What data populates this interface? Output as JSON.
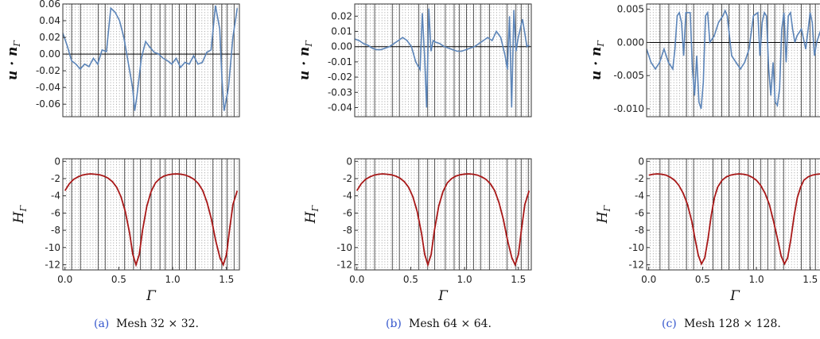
{
  "colors": {
    "velocity_series": "#5b84b8",
    "height_series": "#a81818",
    "caption_label": "#3355cc",
    "grid_solid": "#444444",
    "grid_dotted": "#9a9a9a"
  },
  "chart_data": [
    {
      "type": "line",
      "panel": "a-top",
      "ylabel": "u · n_Γ",
      "ylim": [
        -0.075,
        0.06
      ],
      "xlim": [
        0,
        1.62
      ],
      "yticks": [
        "0.06",
        "0.04",
        "0.02",
        "0.00",
        "-0.02",
        "-0.04",
        "-0.06"
      ],
      "ytick_values": [
        0.06,
        0.04,
        0.02,
        0.0,
        -0.02,
        -0.04,
        -0.06
      ],
      "series": [
        {
          "x": [
            0.0,
            0.04,
            0.08,
            0.12,
            0.16,
            0.2,
            0.24,
            0.28,
            0.32,
            0.36,
            0.4,
            0.44,
            0.48,
            0.52,
            0.56,
            0.6,
            0.64,
            0.66,
            0.68,
            0.72,
            0.76,
            0.8,
            0.84,
            0.88,
            0.92,
            0.96,
            1.0,
            1.04,
            1.08,
            1.12,
            1.16,
            1.2,
            1.24,
            1.28,
            1.32,
            1.36,
            1.4,
            1.44,
            1.46,
            1.48,
            1.52,
            1.56,
            1.6
          ],
          "y": [
            0.025,
            0.01,
            -0.008,
            -0.012,
            -0.018,
            -0.012,
            -0.015,
            -0.005,
            -0.012,
            0.005,
            0.003,
            0.055,
            0.05,
            0.04,
            0.02,
            -0.01,
            -0.04,
            -0.068,
            -0.05,
            -0.005,
            0.015,
            0.008,
            0.002,
            0.0,
            -0.005,
            -0.008,
            -0.012,
            -0.005,
            -0.016,
            -0.01,
            -0.012,
            -0.002,
            -0.012,
            -0.01,
            0.002,
            0.005,
            0.058,
            0.03,
            -0.03,
            -0.068,
            -0.04,
            0.02,
            0.055
          ]
        }
      ]
    },
    {
      "type": "line",
      "panel": "b-top",
      "ylabel": "u · n_Γ",
      "ylim": [
        -0.046,
        0.028
      ],
      "xlim": [
        0,
        1.62
      ],
      "yticks": [
        "0.02",
        "0.01",
        "0.00",
        "-0.01",
        "-0.02",
        "-0.03",
        "-0.04"
      ],
      "ytick_values": [
        0.02,
        0.01,
        0.0,
        -0.01,
        -0.02,
        -0.03,
        -0.04
      ],
      "series": [
        {
          "x": [
            0.0,
            0.04,
            0.08,
            0.12,
            0.16,
            0.2,
            0.24,
            0.28,
            0.32,
            0.36,
            0.4,
            0.44,
            0.48,
            0.52,
            0.56,
            0.6,
            0.62,
            0.64,
            0.66,
            0.68,
            0.7,
            0.72,
            0.74,
            0.78,
            0.82,
            0.86,
            0.9,
            0.94,
            0.98,
            1.02,
            1.06,
            1.1,
            1.14,
            1.18,
            1.22,
            1.26,
            1.3,
            1.34,
            1.38,
            1.4,
            1.42,
            1.44,
            1.46,
            1.48,
            1.5,
            1.54,
            1.58,
            1.6
          ],
          "y": [
            0.005,
            0.004,
            0.002,
            0.001,
            -0.001,
            -0.002,
            -0.002,
            -0.001,
            0.0,
            0.002,
            0.004,
            0.006,
            0.004,
            0.0,
            -0.01,
            -0.015,
            0.022,
            -0.005,
            -0.04,
            0.025,
            -0.003,
            0.004,
            0.003,
            0.002,
            0.0,
            -0.001,
            -0.002,
            -0.003,
            -0.003,
            -0.002,
            -0.001,
            0.0,
            0.002,
            0.004,
            0.006,
            0.004,
            0.01,
            0.006,
            -0.006,
            -0.015,
            0.02,
            -0.04,
            0.024,
            -0.003,
            0.006,
            0.018,
            0.0,
            0.001
          ]
        }
      ]
    },
    {
      "type": "line",
      "panel": "c-top",
      "ylabel": "u · n_Γ",
      "ylim": [
        -0.0112,
        0.0058
      ],
      "xlim": [
        0,
        1.62
      ],
      "yticks": [
        "0.005",
        "0.000",
        "-0.005",
        "-0.010"
      ],
      "ytick_values": [
        0.005,
        0.0,
        -0.005,
        -0.01
      ],
      "series": [
        {
          "x": [
            0.0,
            0.04,
            0.08,
            0.12,
            0.16,
            0.2,
            0.24,
            0.26,
            0.28,
            0.3,
            0.32,
            0.34,
            0.36,
            0.4,
            0.42,
            0.44,
            0.46,
            0.48,
            0.5,
            0.52,
            0.54,
            0.56,
            0.58,
            0.62,
            0.66,
            0.7,
            0.72,
            0.74,
            0.78,
            0.82,
            0.86,
            0.9,
            0.94,
            0.98,
            1.02,
            1.04,
            1.06,
            1.08,
            1.1,
            1.12,
            1.14,
            1.16,
            1.18,
            1.2,
            1.22,
            1.24,
            1.26,
            1.28,
            1.3,
            1.32,
            1.34,
            1.36,
            1.38,
            1.42,
            1.46,
            1.5,
            1.52,
            1.54,
            1.56,
            1.6
          ],
          "y": [
            -0.001,
            -0.003,
            -0.004,
            -0.003,
            -0.001,
            -0.003,
            -0.004,
            -0.001,
            0.004,
            0.0045,
            0.003,
            -0.002,
            0.0045,
            0.0045,
            -0.004,
            -0.008,
            -0.002,
            -0.009,
            -0.01,
            -0.006,
            0.004,
            0.0045,
            0.0,
            0.001,
            0.003,
            0.004,
            0.0048,
            0.004,
            -0.002,
            -0.003,
            -0.004,
            -0.003,
            -0.001,
            0.004,
            0.0045,
            -0.002,
            0.003,
            0.0045,
            0.004,
            -0.004,
            -0.008,
            -0.003,
            -0.009,
            -0.0095,
            -0.007,
            0.002,
            0.0045,
            -0.003,
            0.004,
            0.0045,
            0.002,
            0.0,
            0.001,
            0.002,
            -0.001,
            0.0045,
            0.003,
            -0.002,
            0.0,
            0.002
          ]
        }
      ]
    },
    {
      "type": "line",
      "panel": "a-bottom",
      "ylabel": "H_Γ",
      "xlabel": "Γ",
      "ylim": [
        -12.6,
        0.3
      ],
      "xlim": [
        -0.02,
        1.62
      ],
      "xticks": [
        "0.0",
        "0.5",
        "1.0",
        "1.5"
      ],
      "xtick_values": [
        0.0,
        0.5,
        1.0,
        1.5
      ],
      "yticks": [
        "0",
        "-2",
        "-4",
        "-6",
        "-8",
        "-10",
        "-12"
      ],
      "ytick_values": [
        0,
        -2,
        -4,
        -6,
        -8,
        -10,
        -12
      ],
      "series": [
        {
          "x": [
            0.0,
            0.04,
            0.08,
            0.12,
            0.16,
            0.2,
            0.24,
            0.28,
            0.32,
            0.36,
            0.4,
            0.44,
            0.48,
            0.52,
            0.56,
            0.6,
            0.63,
            0.66,
            0.69,
            0.72,
            0.76,
            0.8,
            0.84,
            0.88,
            0.92,
            0.96,
            1.0,
            1.04,
            1.08,
            1.12,
            1.16,
            1.2,
            1.24,
            1.28,
            1.32,
            1.36,
            1.4,
            1.44,
            1.47,
            1.5,
            1.53,
            1.56,
            1.6
          ],
          "y": [
            -3.4,
            -2.6,
            -2.1,
            -1.8,
            -1.6,
            -1.5,
            -1.45,
            -1.5,
            -1.55,
            -1.7,
            -1.95,
            -2.35,
            -3.0,
            -4.1,
            -5.8,
            -8.3,
            -10.8,
            -12.0,
            -10.8,
            -8.0,
            -5.2,
            -3.5,
            -2.5,
            -2.0,
            -1.7,
            -1.55,
            -1.48,
            -1.45,
            -1.5,
            -1.6,
            -1.8,
            -2.1,
            -2.6,
            -3.4,
            -4.8,
            -6.7,
            -9.2,
            -11.2,
            -12.0,
            -10.8,
            -7.8,
            -5.0,
            -3.4
          ]
        }
      ]
    },
    {
      "type": "line",
      "panel": "b-bottom",
      "ylabel": "H_Γ",
      "xlabel": "Γ",
      "ylim": [
        -12.6,
        0.3
      ],
      "xlim": [
        -0.02,
        1.62
      ],
      "xticks": [
        "0.0",
        "0.5",
        "1.0",
        "1.5"
      ],
      "xtick_values": [
        0.0,
        0.5,
        1.0,
        1.5
      ],
      "yticks": [
        "0",
        "-2",
        "-4",
        "-6",
        "-8",
        "-10",
        "-12"
      ],
      "ytick_values": [
        0,
        -2,
        -4,
        -6,
        -8,
        -10,
        -12
      ],
      "series": [
        {
          "x": [
            0.0,
            0.04,
            0.08,
            0.12,
            0.16,
            0.2,
            0.24,
            0.28,
            0.32,
            0.36,
            0.4,
            0.44,
            0.48,
            0.52,
            0.56,
            0.6,
            0.63,
            0.66,
            0.69,
            0.72,
            0.76,
            0.8,
            0.84,
            0.88,
            0.92,
            0.96,
            1.0,
            1.04,
            1.08,
            1.12,
            1.16,
            1.2,
            1.24,
            1.28,
            1.32,
            1.36,
            1.4,
            1.44,
            1.47,
            1.5,
            1.53,
            1.56,
            1.6
          ],
          "y": [
            -3.4,
            -2.6,
            -2.1,
            -1.8,
            -1.6,
            -1.5,
            -1.45,
            -1.5,
            -1.55,
            -1.7,
            -1.95,
            -2.35,
            -3.0,
            -4.1,
            -5.8,
            -8.3,
            -10.8,
            -12.0,
            -10.8,
            -8.0,
            -5.2,
            -3.5,
            -2.5,
            -2.0,
            -1.7,
            -1.55,
            -1.48,
            -1.45,
            -1.5,
            -1.6,
            -1.8,
            -2.1,
            -2.6,
            -3.4,
            -4.8,
            -6.7,
            -9.2,
            -11.2,
            -12.0,
            -10.8,
            -7.8,
            -5.0,
            -3.4
          ]
        }
      ]
    },
    {
      "type": "line",
      "panel": "c-bottom",
      "ylabel": "H_Γ",
      "xlabel": "Γ",
      "ylim": [
        -12.6,
        0.3
      ],
      "xlim": [
        -0.02,
        1.62
      ],
      "xticks": [
        "0.0",
        "0.5",
        "1.0",
        "1.5"
      ],
      "xtick_values": [
        0.0,
        0.5,
        1.0,
        1.5
      ],
      "yticks": [
        "0",
        "-2",
        "-4",
        "-6",
        "-8",
        "-10",
        "-12"
      ],
      "ytick_values": [
        0,
        -2,
        -4,
        -6,
        -8,
        -10,
        -12
      ],
      "series": [
        {
          "x": [
            0.0,
            0.04,
            0.08,
            0.12,
            0.16,
            0.2,
            0.24,
            0.28,
            0.32,
            0.36,
            0.4,
            0.43,
            0.46,
            0.49,
            0.52,
            0.55,
            0.58,
            0.61,
            0.64,
            0.68,
            0.72,
            0.76,
            0.8,
            0.84,
            0.88,
            0.92,
            0.96,
            1.0,
            1.04,
            1.08,
            1.12,
            1.16,
            1.2,
            1.23,
            1.26,
            1.29,
            1.32,
            1.35,
            1.38,
            1.41,
            1.44,
            1.48,
            1.52,
            1.56,
            1.6
          ],
          "y": [
            -1.6,
            -1.5,
            -1.45,
            -1.5,
            -1.6,
            -1.85,
            -2.2,
            -2.8,
            -3.7,
            -5.0,
            -7.0,
            -9.0,
            -10.9,
            -11.9,
            -11.2,
            -9.0,
            -6.3,
            -4.2,
            -3.0,
            -2.2,
            -1.8,
            -1.6,
            -1.5,
            -1.45,
            -1.5,
            -1.6,
            -1.85,
            -2.2,
            -2.8,
            -3.7,
            -5.0,
            -7.0,
            -9.2,
            -11.0,
            -11.9,
            -11.2,
            -9.0,
            -6.3,
            -4.2,
            -3.0,
            -2.2,
            -1.8,
            -1.6,
            -1.5,
            -1.45
          ]
        }
      ]
    }
  ],
  "captions": [
    {
      "label": "(a)",
      "text": "Mesh 32 × 32."
    },
    {
      "label": "(b)",
      "text": "Mesh 64 × 64."
    },
    {
      "label": "(c)",
      "text": "Mesh 128 × 128."
    }
  ],
  "axis_labels": {
    "velocity": "u · n",
    "velocity_sub": "Γ",
    "height": "H",
    "height_sub": "Γ",
    "x": "Γ"
  }
}
